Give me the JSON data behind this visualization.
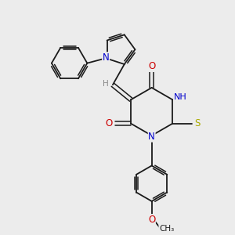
{
  "bg_color": "#ececec",
  "atom_colors": {
    "C": "#1a1a1a",
    "N": "#0000cc",
    "O": "#cc0000",
    "S": "#aaaa00",
    "H": "#888888"
  },
  "bond_color": "#1a1a1a",
  "font_size": 7.5,
  "label_font_size": 8.5
}
